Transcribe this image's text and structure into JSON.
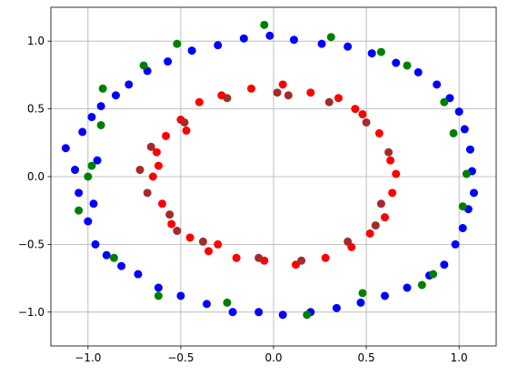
{
  "chart_data": {
    "type": "scatter",
    "title": "",
    "xlabel": "",
    "ylabel": "",
    "xlim": [
      -1.2,
      1.2
    ],
    "ylim": [
      -1.25,
      1.25
    ],
    "xticks": [
      -1.0,
      -0.5,
      0.0,
      0.5,
      1.0
    ],
    "xtick_labels": [
      "−1.0",
      "−0.5",
      "0.0",
      "0.5",
      "1.0"
    ],
    "yticks": [
      -1.0,
      -0.5,
      0.0,
      0.5,
      1.0
    ],
    "ytick_labels": [
      "−1.0",
      "−0.5",
      "0.0",
      "0.5",
      "1.0"
    ],
    "grid": true,
    "series": [
      {
        "color": "#0000ff",
        "marker": "circle",
        "points": [
          [
            -1.12,
            0.21
          ],
          [
            -1.07,
            0.05
          ],
          [
            -1.05,
            -0.12
          ],
          [
            -1.03,
            0.33
          ],
          [
            -1.0,
            -0.33
          ],
          [
            -0.98,
            0.44
          ],
          [
            -0.96,
            -0.5
          ],
          [
            -0.93,
            0.52
          ],
          [
            -0.9,
            -0.58
          ],
          [
            -0.85,
            0.6
          ],
          [
            -0.82,
            -0.66
          ],
          [
            -0.78,
            0.68
          ],
          [
            -0.73,
            -0.72
          ],
          [
            -0.68,
            0.78
          ],
          [
            -0.62,
            -0.82
          ],
          [
            -0.57,
            0.85
          ],
          [
            -0.5,
            -0.88
          ],
          [
            -0.44,
            0.93
          ],
          [
            -0.36,
            -0.94
          ],
          [
            -0.3,
            0.97
          ],
          [
            -0.22,
            -1.0
          ],
          [
            -0.16,
            1.02
          ],
          [
            -0.08,
            -1.0
          ],
          [
            -0.02,
            1.04
          ],
          [
            0.05,
            -1.02
          ],
          [
            0.11,
            1.01
          ],
          [
            0.2,
            -1.0
          ],
          [
            0.26,
            0.98
          ],
          [
            0.34,
            -0.97
          ],
          [
            0.4,
            0.96
          ],
          [
            0.47,
            -0.93
          ],
          [
            0.53,
            0.91
          ],
          [
            0.6,
            -0.88
          ],
          [
            0.66,
            0.84
          ],
          [
            0.72,
            -0.82
          ],
          [
            0.78,
            0.77
          ],
          [
            0.84,
            -0.73
          ],
          [
            0.88,
            0.68
          ],
          [
            0.92,
            -0.65
          ],
          [
            0.95,
            0.58
          ],
          [
            0.98,
            -0.5
          ],
          [
            1.0,
            0.48
          ],
          [
            1.02,
            -0.38
          ],
          [
            1.03,
            0.35
          ],
          [
            1.05,
            -0.24
          ],
          [
            1.06,
            0.2
          ],
          [
            1.07,
            0.04
          ],
          [
            1.08,
            -0.12
          ],
          [
            -0.95,
            0.12
          ],
          [
            -0.97,
            -0.2
          ]
        ]
      },
      {
        "color": "#008000",
        "marker": "circle",
        "points": [
          [
            -1.05,
            -0.25
          ],
          [
            -0.98,
            0.08
          ],
          [
            -1.0,
            0.0
          ],
          [
            -0.92,
            0.65
          ],
          [
            -0.86,
            -0.6
          ],
          [
            -0.7,
            0.82
          ],
          [
            -0.62,
            -0.88
          ],
          [
            -0.52,
            0.98
          ],
          [
            -0.25,
            -0.93
          ],
          [
            -0.05,
            1.12
          ],
          [
            0.18,
            -1.02
          ],
          [
            0.31,
            1.03
          ],
          [
            0.48,
            -0.86
          ],
          [
            0.58,
            0.92
          ],
          [
            0.72,
            0.82
          ],
          [
            0.86,
            -0.72
          ],
          [
            0.92,
            0.55
          ],
          [
            1.02,
            -0.22
          ],
          [
            0.97,
            0.32
          ],
          [
            0.8,
            -0.8
          ],
          [
            -0.93,
            0.38
          ],
          [
            1.04,
            0.02
          ]
        ]
      },
      {
        "color": "#ff0000",
        "marker": "circle",
        "points": [
          [
            -0.65,
            0.0
          ],
          [
            -0.63,
            0.18
          ],
          [
            -0.6,
            -0.2
          ],
          [
            -0.58,
            0.3
          ],
          [
            -0.55,
            -0.35
          ],
          [
            -0.5,
            0.42
          ],
          [
            -0.45,
            -0.45
          ],
          [
            -0.4,
            0.55
          ],
          [
            -0.35,
            -0.55
          ],
          [
            -0.28,
            0.6
          ],
          [
            -0.2,
            -0.6
          ],
          [
            -0.12,
            0.65
          ],
          [
            -0.05,
            -0.62
          ],
          [
            0.05,
            0.68
          ],
          [
            0.12,
            -0.65
          ],
          [
            0.2,
            0.62
          ],
          [
            0.28,
            -0.6
          ],
          [
            0.35,
            0.58
          ],
          [
            0.42,
            -0.52
          ],
          [
            0.48,
            0.46
          ],
          [
            0.52,
            -0.42
          ],
          [
            0.57,
            0.32
          ],
          [
            0.6,
            -0.3
          ],
          [
            0.63,
            0.12
          ],
          [
            0.64,
            -0.12
          ],
          [
            0.66,
            0.02
          ],
          [
            -0.62,
            0.08
          ],
          [
            -0.47,
            0.34
          ],
          [
            0.44,
            0.5
          ],
          [
            -0.3,
            -0.5
          ]
        ]
      },
      {
        "color": "#a52a2a",
        "marker": "circle",
        "points": [
          [
            -0.72,
            0.05
          ],
          [
            -0.68,
            -0.12
          ],
          [
            -0.66,
            0.22
          ],
          [
            -0.56,
            -0.28
          ],
          [
            -0.48,
            0.4
          ],
          [
            -0.38,
            -0.48
          ],
          [
            -0.25,
            0.58
          ],
          [
            -0.08,
            -0.6
          ],
          [
            0.02,
            0.62
          ],
          [
            0.15,
            -0.62
          ],
          [
            0.3,
            0.55
          ],
          [
            0.4,
            -0.48
          ],
          [
            0.5,
            0.4
          ],
          [
            0.58,
            -0.2
          ],
          [
            0.62,
            0.18
          ],
          [
            0.55,
            -0.36
          ],
          [
            -0.52,
            -0.4
          ],
          [
            0.08,
            0.6
          ]
        ]
      }
    ]
  }
}
